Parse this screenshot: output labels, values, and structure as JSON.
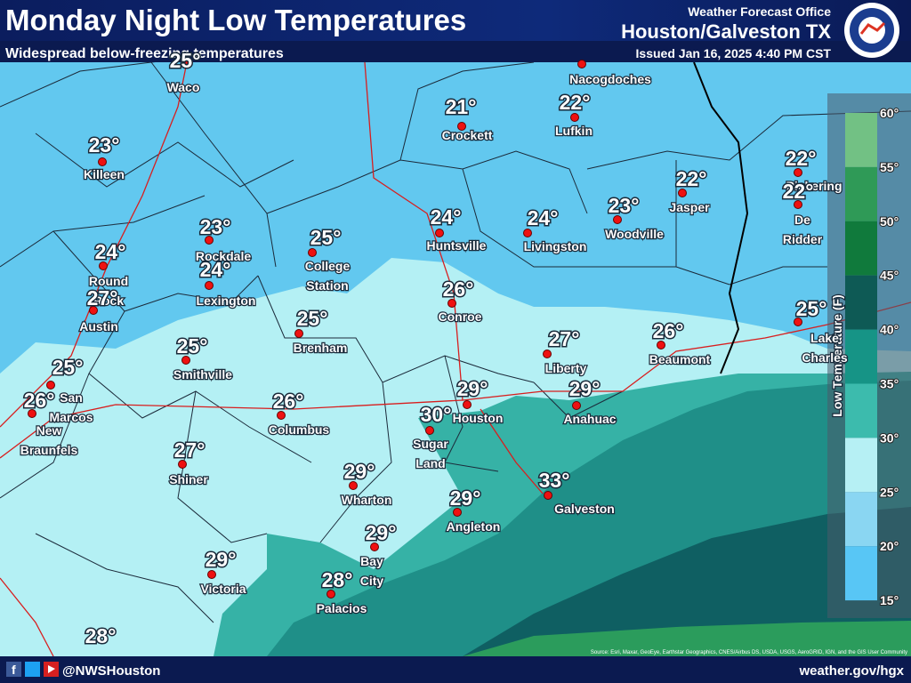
{
  "header": {
    "title": "Monday Night Low Temperatures",
    "subtitle": "Widespread below-freezing temperatures",
    "office": "Weather Forecast Office",
    "location": "Houston/Galveston TX",
    "issued": "Issued Jan 16, 2025 4:40 PM CST"
  },
  "cities": [
    {
      "temp": "25°",
      "name": [
        "Waco"
      ]
    },
    {
      "name": [
        "Nacogdoches"
      ]
    },
    {
      "temp": "21°",
      "name": [
        "Crockett"
      ]
    },
    {
      "temp": "22°",
      "name": [
        "Lufkin"
      ]
    },
    {
      "temp": "23°",
      "name": [
        "Killeen"
      ]
    },
    {
      "temp": "22°",
      "name": [
        "Pickering"
      ]
    },
    {
      "temp": "22°",
      "name": [
        "De",
        "Ridder"
      ]
    },
    {
      "temp": "22°",
      "name": [
        "Jasper"
      ]
    },
    {
      "temp": "23°",
      "name": [
        "Woodville"
      ]
    },
    {
      "temp": "24°",
      "name": [
        "Livingston"
      ]
    },
    {
      "temp": "24°",
      "name": [
        "Huntsville"
      ]
    },
    {
      "temp": "23°",
      "name": [
        "Rockdale"
      ]
    },
    {
      "temp": "25°",
      "name": [
        "College",
        "Station"
      ]
    },
    {
      "temp": "24°",
      "name": [
        "Round",
        "Rock"
      ]
    },
    {
      "temp": "24°",
      "name": [
        "Lexington"
      ]
    },
    {
      "temp": "26°",
      "name": [
        "Conroe"
      ]
    },
    {
      "temp": "27°",
      "name": [
        "Austin"
      ]
    },
    {
      "temp": "25°",
      "name": [
        "Brenham"
      ]
    },
    {
      "temp": "25°",
      "name": [
        "Lake",
        "Charles"
      ]
    },
    {
      "temp": "26°",
      "name": [
        "Beaumont"
      ]
    },
    {
      "temp": "27°",
      "name": [
        "Liberty"
      ]
    },
    {
      "temp": "25°",
      "name": [
        "Smithville"
      ]
    },
    {
      "temp": "25°",
      "name": [
        "San",
        "Marcos"
      ]
    },
    {
      "temp": "29°",
      "name": [
        "Houston"
      ]
    },
    {
      "temp": "29°",
      "name": [
        "Anahuac"
      ]
    },
    {
      "temp": "26°",
      "name": [
        "New",
        "Braunfels"
      ]
    },
    {
      "temp": "26°",
      "name": [
        "Columbus"
      ]
    },
    {
      "temp": "30°",
      "name": [
        "Sugar",
        "Land"
      ]
    },
    {
      "temp": "27°",
      "name": [
        "Shiner"
      ]
    },
    {
      "temp": "29°",
      "name": [
        "Wharton"
      ]
    },
    {
      "temp": "33°",
      "name": [
        "Galveston"
      ]
    },
    {
      "temp": "29°",
      "name": [
        "Angleton"
      ]
    },
    {
      "temp": "29°",
      "name": [
        "Bay",
        "City"
      ]
    },
    {
      "temp": "29°",
      "name": [
        "Victoria"
      ]
    },
    {
      "temp": "28°",
      "name": [
        "Palacios"
      ]
    },
    {
      "temp": "28°"
    }
  ],
  "legend": {
    "title": "Low Temperature (F)",
    "ticks": [
      "60°",
      "55°",
      "50°",
      "45°",
      "40°",
      "35°",
      "30°",
      "25°",
      "20°",
      "15°"
    ]
  },
  "footer": {
    "handle": "@NWSHouston",
    "website": "weather.gov/hgx",
    "source": "Source: Esri, Maxar, GeoEye, Earthstar Geographics, CNES/Airbus DS, USDA, USGS, AeroGRID, IGN, and the GIS User Community"
  }
}
